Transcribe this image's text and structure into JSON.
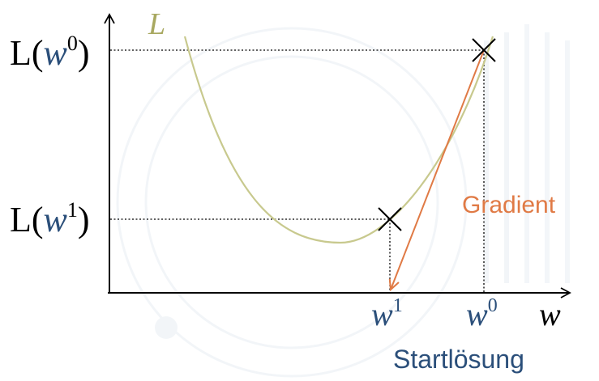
{
  "diagram": {
    "curve_label": "L",
    "y_labels": {
      "lw0": {
        "prefix": "L(",
        "var": "w",
        "sup": "0",
        "suffix": ")"
      },
      "lw1": {
        "prefix": "L(",
        "var": "w",
        "sup": "1",
        "suffix": ")"
      }
    },
    "x_labels": {
      "w1": {
        "var": "w",
        "sup": "1"
      },
      "w0": {
        "var": "w",
        "sup": "0"
      },
      "axis": "w"
    },
    "gradient_label": "Gradient",
    "start_label": "Startlösung",
    "colors": {
      "curve": "#c8c98e",
      "curve_label": "#a8a860",
      "gradient": "#e07a45",
      "variable": "#2b4f7a",
      "text": "#000000",
      "watermark": "#e9eef4"
    }
  }
}
